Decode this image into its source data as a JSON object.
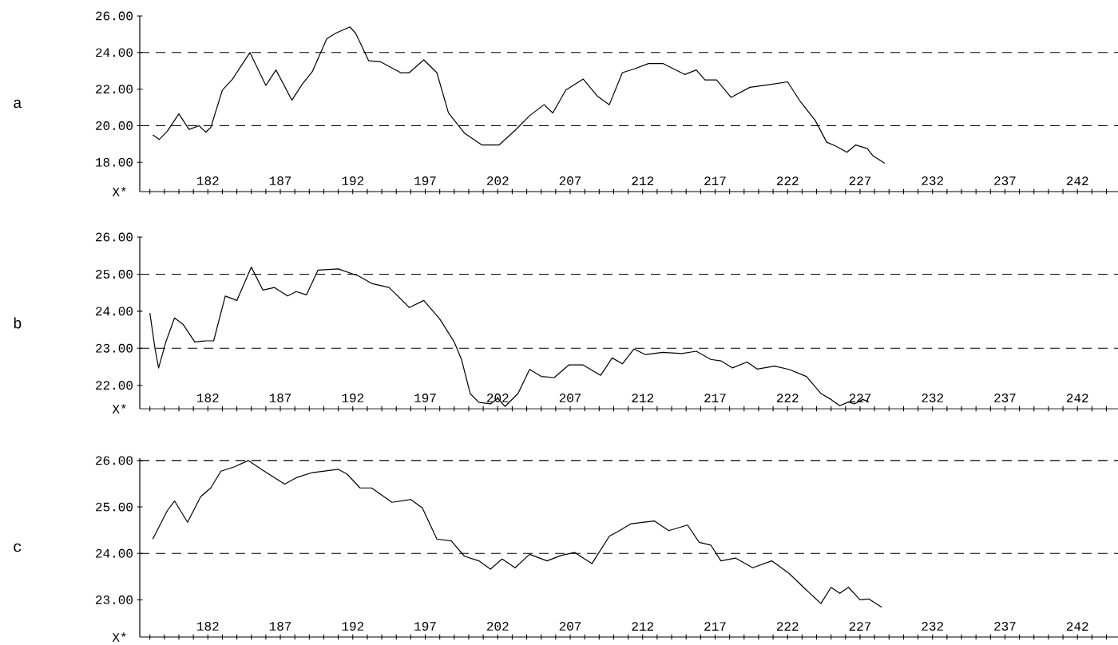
{
  "chart_data": [
    {
      "type": "line",
      "ylabel": "a",
      "xlabel": "X*",
      "color": "#000000",
      "marker": "none",
      "x": [
        178.2,
        178.65,
        179.2,
        180.0,
        180.7,
        181.4,
        181.85,
        182.2,
        183.0,
        183.7,
        184.9,
        186.0,
        186.7,
        187.8,
        188.5,
        189.2,
        190.2,
        190.8,
        191.8,
        192.2,
        193.1,
        193.9,
        195.3,
        195.9,
        196.9,
        197.8,
        198.6,
        199.7,
        200.9,
        202.1,
        203.2,
        204.2,
        205.2,
        205.8,
        206.7,
        207.9,
        208.9,
        209.7,
        210.6,
        211.4,
        212.4,
        213.4,
        214.9,
        215.7,
        216.3,
        217.1,
        218.1,
        219.4,
        220.8,
        222.0,
        222.9,
        223.9,
        224.7,
        225.3,
        226.1,
        226.7,
        227.5,
        227.9,
        228.7
      ],
      "values": [
        19.5,
        19.25,
        19.7,
        20.65,
        19.8,
        20.0,
        19.65,
        19.9,
        21.95,
        22.55,
        24.0,
        22.2,
        23.05,
        21.4,
        22.25,
        22.95,
        24.75,
        25.05,
        25.4,
        25.05,
        23.55,
        23.5,
        22.9,
        22.9,
        23.6,
        22.9,
        20.7,
        19.6,
        18.95,
        18.95,
        19.75,
        20.55,
        21.15,
        20.7,
        21.95,
        22.55,
        21.6,
        21.15,
        22.9,
        23.1,
        23.4,
        23.4,
        22.8,
        23.05,
        22.5,
        22.5,
        21.55,
        22.1,
        22.25,
        22.4,
        21.3,
        20.3,
        19.1,
        18.9,
        18.55,
        18.95,
        18.75,
        18.35,
        17.95
      ],
      "xlim": [
        177.3,
        244.8
      ],
      "ylim": [
        16.4,
        26.0
      ],
      "xticks": [
        {
          "value": 178,
          "label": null
        },
        {
          "value": 179,
          "label": null
        },
        {
          "value": 180,
          "label": null
        },
        {
          "value": 181,
          "label": null
        },
        182,
        {
          "value": 183,
          "label": null
        },
        {
          "value": 184,
          "label": null
        },
        {
          "value": 185,
          "label": null
        },
        {
          "value": 186,
          "label": null
        },
        187,
        {
          "value": 188,
          "label": null
        },
        {
          "value": 189,
          "label": null
        },
        {
          "value": 190,
          "label": null
        },
        {
          "value": 191,
          "label": null
        },
        192,
        {
          "value": 193,
          "label": null
        },
        {
          "value": 194,
          "label": null
        },
        {
          "value": 195,
          "label": null
        },
        {
          "value": 196,
          "label": null
        },
        197,
        {
          "value": 198,
          "label": null
        },
        {
          "value": 199,
          "label": null
        },
        {
          "value": 200,
          "label": null
        },
        {
          "value": 201,
          "label": null
        },
        202,
        {
          "value": 203,
          "label": null
        },
        {
          "value": 204,
          "label": null
        },
        {
          "value": 205,
          "label": null
        },
        {
          "value": 206,
          "label": null
        },
        207,
        {
          "value": 208,
          "label": null
        },
        {
          "value": 209,
          "label": null
        },
        {
          "value": 210,
          "label": null
        },
        {
          "value": 211,
          "label": null
        },
        212,
        {
          "value": 213,
          "label": null
        },
        {
          "value": 214,
          "label": null
        },
        {
          "value": 215,
          "label": null
        },
        {
          "value": 216,
          "label": null
        },
        217,
        {
          "value": 218,
          "label": null
        },
        {
          "value": 219,
          "label": null
        },
        {
          "value": 220,
          "label": null
        },
        {
          "value": 221,
          "label": null
        },
        222,
        {
          "value": 223,
          "label": null
        },
        {
          "value": 224,
          "label": null
        },
        {
          "value": 225,
          "label": null
        },
        {
          "value": 226,
          "label": null
        },
        227,
        {
          "value": 228,
          "label": null
        },
        {
          "value": 229,
          "label": null
        },
        {
          "value": 230,
          "label": null
        },
        {
          "value": 231,
          "label": null
        },
        232,
        {
          "value": 233,
          "label": null
        },
        {
          "value": 234,
          "label": null
        },
        {
          "value": 235,
          "label": null
        },
        {
          "value": 236,
          "label": null
        },
        237,
        {
          "value": 238,
          "label": null
        },
        {
          "value": 239,
          "label": null
        },
        {
          "value": 240,
          "label": null
        },
        {
          "value": 241,
          "label": null
        },
        242,
        {
          "value": 243,
          "label": null
        },
        {
          "value": 244,
          "label": null
        }
      ],
      "yticks": [
        {
          "value": 18,
          "label": "18.00"
        },
        {
          "value": 20,
          "label": "20.00"
        },
        {
          "value": 22,
          "label": "22.00"
        },
        {
          "value": 24,
          "label": "24.00"
        },
        {
          "value": 26,
          "label": "26.00"
        }
      ],
      "ref_lines": [
        {
          "axis": "y",
          "value": 24,
          "line_style": "dashed"
        },
        {
          "axis": "y",
          "value": 20,
          "line_style": "dashed"
        }
      ]
    },
    {
      "type": "line",
      "ylabel": "b",
      "xlabel": "X*",
      "color": "#000000",
      "marker": "none",
      "x": [
        178.0,
        178.35,
        178.6,
        179.1,
        179.7,
        180.3,
        181.1,
        181.85,
        182.4,
        183.2,
        184.0,
        185.0,
        185.8,
        186.6,
        187.5,
        188.1,
        188.8,
        189.6,
        191.0,
        192.4,
        193.3,
        194.5,
        195.9,
        196.9,
        198.0,
        199.0,
        199.5,
        200.1,
        200.7,
        201.5,
        202.0,
        202.5,
        203.4,
        204.2,
        205.0,
        205.9,
        206.9,
        207.9,
        209.1,
        209.9,
        210.6,
        211.4,
        212.2,
        213.4,
        214.7,
        215.7,
        216.7,
        217.4,
        218.2,
        219.2,
        219.9,
        221.1,
        222.1,
        223.3,
        224.3,
        225.0,
        225.6,
        226.2,
        226.6,
        227.2,
        227.6
      ],
      "values": [
        23.95,
        23.0,
        22.47,
        23.17,
        23.82,
        23.64,
        23.17,
        23.2,
        23.2,
        24.41,
        24.29,
        25.19,
        24.57,
        24.64,
        24.41,
        24.53,
        24.44,
        25.11,
        25.14,
        24.95,
        24.75,
        24.64,
        24.1,
        24.29,
        23.79,
        23.17,
        22.7,
        21.78,
        21.54,
        21.5,
        21.65,
        21.43,
        21.78,
        22.43,
        22.24,
        22.21,
        22.55,
        22.55,
        22.27,
        22.74,
        22.58,
        22.98,
        22.83,
        22.89,
        22.86,
        22.92,
        22.7,
        22.66,
        22.47,
        22.63,
        22.44,
        22.52,
        22.43,
        22.24,
        21.78,
        21.62,
        21.45,
        21.55,
        21.5,
        21.62,
        21.55
      ],
      "xlim": [
        177.3,
        244.8
      ],
      "ylim": [
        21.37,
        26.0
      ],
      "xticks": [
        {
          "value": 178,
          "label": null
        },
        {
          "value": 179,
          "label": null
        },
        {
          "value": 180,
          "label": null
        },
        {
          "value": 181,
          "label": null
        },
        182,
        {
          "value": 183,
          "label": null
        },
        {
          "value": 184,
          "label": null
        },
        {
          "value": 185,
          "label": null
        },
        {
          "value": 186,
          "label": null
        },
        187,
        {
          "value": 188,
          "label": null
        },
        {
          "value": 189,
          "label": null
        },
        {
          "value": 190,
          "label": null
        },
        {
          "value": 191,
          "label": null
        },
        192,
        {
          "value": 193,
          "label": null
        },
        {
          "value": 194,
          "label": null
        },
        {
          "value": 195,
          "label": null
        },
        {
          "value": 196,
          "label": null
        },
        197,
        {
          "value": 198,
          "label": null
        },
        {
          "value": 199,
          "label": null
        },
        {
          "value": 200,
          "label": null
        },
        {
          "value": 201,
          "label": null
        },
        202,
        {
          "value": 203,
          "label": null
        },
        {
          "value": 204,
          "label": null
        },
        {
          "value": 205,
          "label": null
        },
        {
          "value": 206,
          "label": null
        },
        207,
        {
          "value": 208,
          "label": null
        },
        {
          "value": 209,
          "label": null
        },
        {
          "value": 210,
          "label": null
        },
        {
          "value": 211,
          "label": null
        },
        212,
        {
          "value": 213,
          "label": null
        },
        {
          "value": 214,
          "label": null
        },
        {
          "value": 215,
          "label": null
        },
        {
          "value": 216,
          "label": null
        },
        217,
        {
          "value": 218,
          "label": null
        },
        {
          "value": 219,
          "label": null
        },
        {
          "value": 220,
          "label": null
        },
        {
          "value": 221,
          "label": null
        },
        222,
        {
          "value": 223,
          "label": null
        },
        {
          "value": 224,
          "label": null
        },
        {
          "value": 225,
          "label": null
        },
        {
          "value": 226,
          "label": null
        },
        227,
        {
          "value": 228,
          "label": null
        },
        {
          "value": 229,
          "label": null
        },
        {
          "value": 230,
          "label": null
        },
        {
          "value": 231,
          "label": null
        },
        232,
        {
          "value": 233,
          "label": null
        },
        {
          "value": 234,
          "label": null
        },
        {
          "value": 235,
          "label": null
        },
        {
          "value": 236,
          "label": null
        },
        237,
        {
          "value": 238,
          "label": null
        },
        {
          "value": 239,
          "label": null
        },
        {
          "value": 240,
          "label": null
        },
        {
          "value": 241,
          "label": null
        },
        242,
        {
          "value": 243,
          "label": null
        },
        {
          "value": 244,
          "label": null
        }
      ],
      "yticks": [
        {
          "value": 22,
          "label": "22.00"
        },
        {
          "value": 23,
          "label": "23.00"
        },
        {
          "value": 24,
          "label": "24.00"
        },
        {
          "value": 25,
          "label": "25.00"
        },
        {
          "value": 26,
          "label": "26.00"
        }
      ],
      "ref_lines": [
        {
          "axis": "y",
          "value": 25,
          "line_style": "dashed"
        },
        {
          "axis": "y",
          "value": 23,
          "line_style": "dashed"
        }
      ]
    },
    {
      "type": "line",
      "ylabel": "c",
      "xlabel": "X*",
      "color": "#000000",
      "marker": "none",
      "x": [
        178.2,
        179.2,
        179.7,
        180.6,
        181.5,
        182.2,
        182.9,
        183.8,
        184.8,
        185.7,
        187.3,
        188.1,
        189.2,
        191.0,
        191.6,
        192.5,
        193.3,
        194.7,
        196.0,
        196.8,
        197.8,
        198.8,
        199.7,
        200.7,
        201.5,
        202.3,
        203.2,
        204.2,
        205.4,
        206.4,
        207.3,
        208.5,
        209.7,
        210.4,
        211.2,
        212.8,
        213.8,
        215.1,
        215.9,
        216.7,
        217.4,
        218.4,
        219.6,
        220.9,
        222.1,
        223.1,
        224.3,
        225.0,
        225.6,
        226.2,
        227.0,
        227.6,
        228.5
      ],
      "values": [
        24.31,
        24.92,
        25.13,
        24.67,
        25.22,
        25.41,
        25.77,
        25.86,
        26.0,
        25.81,
        25.49,
        25.63,
        25.74,
        25.81,
        25.71,
        25.41,
        25.41,
        25.1,
        25.16,
        24.98,
        24.31,
        24.27,
        23.94,
        23.84,
        23.66,
        23.88,
        23.69,
        23.98,
        23.84,
        23.96,
        24.02,
        23.78,
        24.37,
        24.49,
        24.64,
        24.7,
        24.49,
        24.61,
        24.24,
        24.18,
        23.84,
        23.9,
        23.69,
        23.84,
        23.57,
        23.27,
        22.92,
        23.27,
        23.14,
        23.27,
        23.0,
        23.02,
        22.84
      ],
      "xlim": [
        177.3,
        244.8
      ],
      "ylim": [
        22.2,
        26.05
      ],
      "xticks": [
        {
          "value": 178,
          "label": null
        },
        {
          "value": 179,
          "label": null
        },
        {
          "value": 180,
          "label": null
        },
        {
          "value": 181,
          "label": null
        },
        182,
        {
          "value": 183,
          "label": null
        },
        {
          "value": 184,
          "label": null
        },
        {
          "value": 185,
          "label": null
        },
        {
          "value": 186,
          "label": null
        },
        187,
        {
          "value": 188,
          "label": null
        },
        {
          "value": 189,
          "label": null
        },
        {
          "value": 190,
          "label": null
        },
        {
          "value": 191,
          "label": null
        },
        192,
        {
          "value": 193,
          "label": null
        },
        {
          "value": 194,
          "label": null
        },
        {
          "value": 195,
          "label": null
        },
        {
          "value": 196,
          "label": null
        },
        197,
        {
          "value": 198,
          "label": null
        },
        {
          "value": 199,
          "label": null
        },
        {
          "value": 200,
          "label": null
        },
        {
          "value": 201,
          "label": null
        },
        202,
        {
          "value": 203,
          "label": null
        },
        {
          "value": 204,
          "label": null
        },
        {
          "value": 205,
          "label": null
        },
        {
          "value": 206,
          "label": null
        },
        207,
        {
          "value": 208,
          "label": null
        },
        {
          "value": 209,
          "label": null
        },
        {
          "value": 210,
          "label": null
        },
        {
          "value": 211,
          "label": null
        },
        212,
        {
          "value": 213,
          "label": null
        },
        {
          "value": 214,
          "label": null
        },
        {
          "value": 215,
          "label": null
        },
        {
          "value": 216,
          "label": null
        },
        217,
        {
          "value": 218,
          "label": null
        },
        {
          "value": 219,
          "label": null
        },
        {
          "value": 220,
          "label": null
        },
        {
          "value": 221,
          "label": null
        },
        222,
        {
          "value": 223,
          "label": null
        },
        {
          "value": 224,
          "label": null
        },
        {
          "value": 225,
          "label": null
        },
        {
          "value": 226,
          "label": null
        },
        227,
        {
          "value": 228,
          "label": null
        },
        {
          "value": 229,
          "label": null
        },
        {
          "value": 230,
          "label": null
        },
        {
          "value": 231,
          "label": null
        },
        232,
        {
          "value": 233,
          "label": null
        },
        {
          "value": 234,
          "label": null
        },
        {
          "value": 235,
          "label": null
        },
        {
          "value": 236,
          "label": null
        },
        237,
        {
          "value": 238,
          "label": null
        },
        {
          "value": 239,
          "label": null
        },
        {
          "value": 240,
          "label": null
        },
        {
          "value": 241,
          "label": null
        },
        242,
        {
          "value": 243,
          "label": null
        },
        {
          "value": 244,
          "label": null
        }
      ],
      "yticks": [
        {
          "value": 23,
          "label": "23.00"
        },
        {
          "value": 24,
          "label": "24.00"
        },
        {
          "value": 25,
          "label": "25.00"
        },
        {
          "value": 26,
          "label": "26.00"
        }
      ],
      "ref_lines": [
        {
          "axis": "y",
          "value": 26,
          "line_style": "dashed"
        },
        {
          "axis": "y",
          "value": 24,
          "line_style": "dashed"
        }
      ]
    }
  ]
}
